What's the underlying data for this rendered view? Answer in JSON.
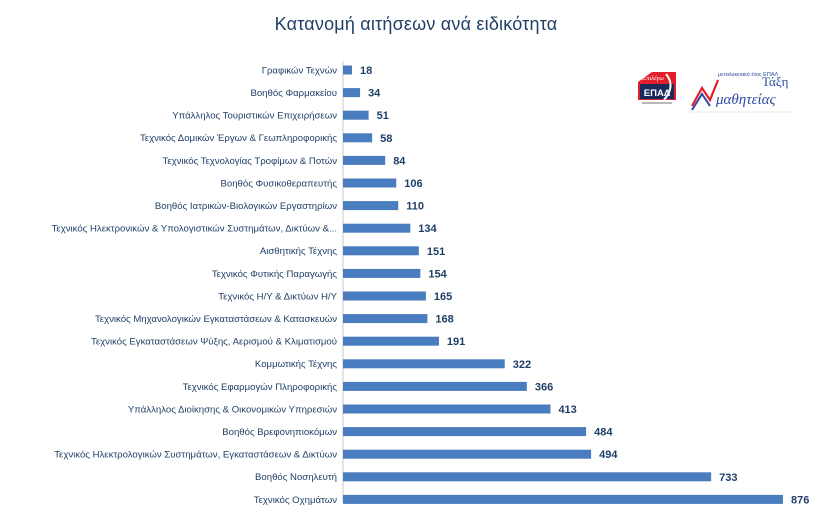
{
  "chart_data": {
    "type": "bar",
    "orientation": "horizontal",
    "title": "Κατανομή αιτήσεων ανά ειδικότητα",
    "categories": [
      "Γραφικών Τεχνών",
      "Βοηθός Φαρμακείου",
      "Υπάλληλος Τουριστικών Επιχειρήσεων",
      "Τεχνικός Δομικών Έργων & Γεωπληροφορικής",
      "Τεχνικός Τεχνολογίας Τροφίμων & Ποτών",
      "Βοηθός Φυσικοθεραπευτής",
      "Βοηθός Ιατρικών-Βιολογικών Εργαστηρίων",
      "Τεχνικός Ηλεκτρονικών & Υπολογιστικών Συστημάτων, Δικτύων &...",
      "Αισθητικής Τέχνης",
      "Τεχνικός Φυτικής Παραγωγής",
      "Τεχνικός Η/Υ & Δικτύων Η/Υ",
      "Τεχνικός Μηχανολογικών Εγκαταστάσεων & Κατασκευών",
      "Τεχνικός Εγκαταστάσεων Ψύξης, Αερισμού & Κλιματισμού",
      "Κομμωτικής Τέχνης",
      "Τεχνικός Εφαρμογών Πληροφορικής",
      "Υπάλληλος Διοίκησης & Οικονομικών Υπηρεσιών",
      "Βοηθός Βρεφονηπιοκόμων",
      "Τεχνικός Ηλεκτρολογικών Συστημάτων, Εγκαταστάσεων & Δικτύων",
      "Βοηθός Νοσηλευτή",
      "Τεχνικός Οχημάτων"
    ],
    "values": [
      18,
      34,
      51,
      58,
      84,
      106,
      110,
      134,
      151,
      154,
      165,
      168,
      191,
      322,
      366,
      413,
      484,
      494,
      733,
      876
    ],
    "xlim": [
      0,
      876
    ],
    "grid": false,
    "legend": "none",
    "bar_color": "#4a7cc0",
    "label_color": "#1f3f66"
  },
  "logos": {
    "epal_text": "ΕΠΑΛ",
    "epal_script": "Επιλέγω",
    "taxi_small": "μεταλυκειακό έτος ΕΠΑΛ",
    "taxi_word1": "Τάξη",
    "taxi_word2": "μαθητείας"
  }
}
